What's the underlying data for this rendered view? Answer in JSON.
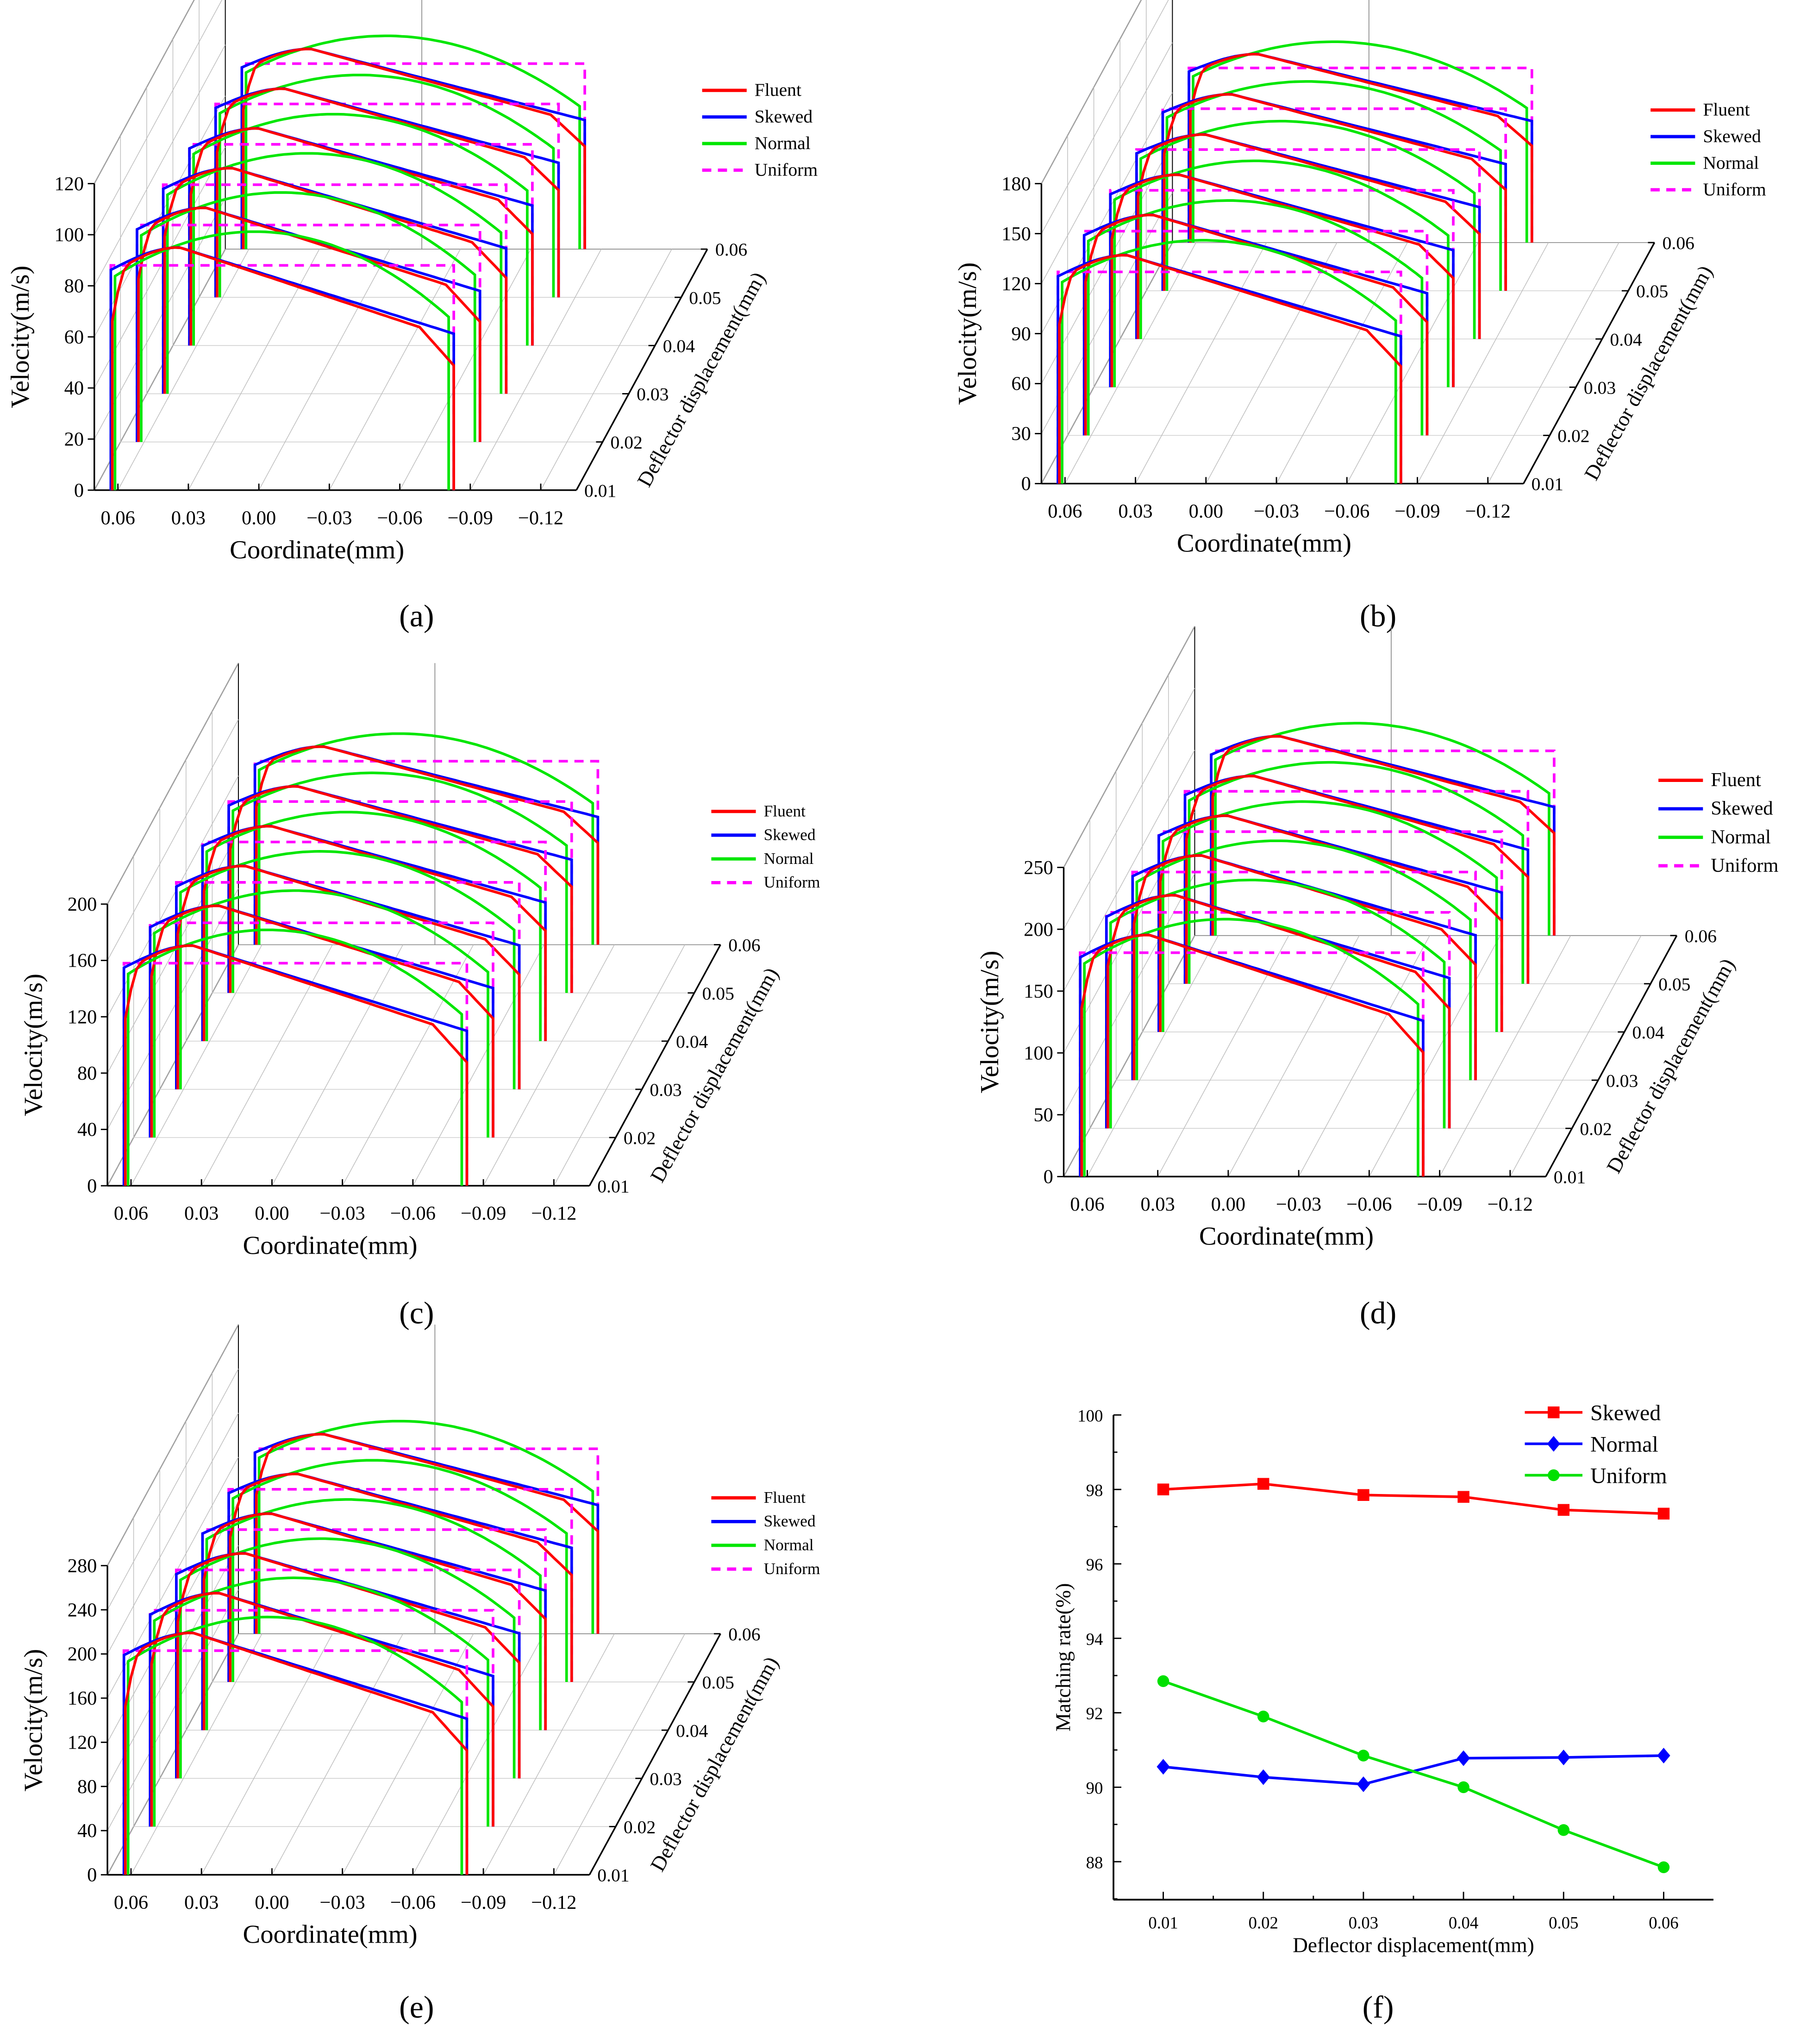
{
  "chart_data": [
    {
      "type": "line3d",
      "panel_label": "(a)",
      "panel_letter": "a",
      "ylabel": "Velocity(m/s)",
      "xlabel": "Coordinate(mm)",
      "zlabel": "Deflector displacement(mm)",
      "ylim": [
        0,
        120
      ],
      "yticks": [
        "0",
        "20",
        "40",
        "60",
        "80",
        "100",
        "120"
      ],
      "xticks": [
        "0.06",
        "0.03",
        "0.00",
        "−0.03",
        "−0.06",
        "−0.09",
        "−0.12"
      ],
      "zticks": [
        "0.01",
        "0.02",
        "0.03",
        "0.04",
        "0.05",
        "0.06"
      ],
      "legend": [
        "Fluent",
        "Skewed",
        "Normal",
        "Uniform"
      ],
      "uniform_velocity": [
        88,
        88,
        88,
        88,
        88,
        88
      ]
    },
    {
      "type": "line3d",
      "panel_label": "(b)",
      "panel_letter": "b",
      "ylabel": "Velocity(m/s)",
      "xlabel": "Coordinate(mm)",
      "zlabel": "Deflector displacement(mm)",
      "ylim": [
        0,
        180
      ],
      "yticks": [
        "0",
        "30",
        "60",
        "90",
        "120",
        "150",
        "180"
      ],
      "xticks": [
        "0.06",
        "0.03",
        "0.00",
        "−0.03",
        "−0.06",
        "−0.09",
        "−0.12"
      ],
      "zticks": [
        "0.01",
        "0.02",
        "0.03",
        "0.04",
        "0.05",
        "0.06"
      ],
      "legend": [
        "Fluent",
        "Skewed",
        "Normal",
        "Uniform"
      ],
      "uniform_velocity": [
        127,
        127,
        127,
        127,
        127,
        127
      ]
    },
    {
      "type": "line3d",
      "panel_label": "(c)",
      "panel_letter": "c",
      "ylabel": "Velocity(m/s)",
      "xlabel": "Coordinate(mm)",
      "zlabel": "Deflector displacement(mm)",
      "ylim": [
        0,
        200
      ],
      "yticks": [
        "0",
        "40",
        "80",
        "120",
        "160",
        "200"
      ],
      "xticks": [
        "0.06",
        "0.03",
        "0.00",
        "−0.03",
        "−0.06",
        "−0.09",
        "−0.12"
      ],
      "zticks": [
        "0.01",
        "0.02",
        "0.03",
        "0.04",
        "0.05",
        "0.06"
      ],
      "legend": [
        "Fluent",
        "Skewed",
        "Normal",
        "Uniform"
      ],
      "uniform_velocity": [
        158,
        158,
        158,
        158,
        158,
        158
      ]
    },
    {
      "type": "line3d",
      "panel_label": "(d)",
      "panel_letter": "d",
      "ylabel": "Velocity(m/s)",
      "xlabel": "Coordinate(mm)",
      "zlabel": "Deflector displacement(mm)",
      "ylim": [
        0,
        250
      ],
      "yticks": [
        "0",
        "50",
        "100",
        "150",
        "200",
        "250"
      ],
      "xticks": [
        "0.06",
        "0.03",
        "0.00",
        "−0.03",
        "−0.06",
        "−0.09",
        "−0.12"
      ],
      "zticks": [
        "0.01",
        "0.02",
        "0.03",
        "0.04",
        "0.05",
        "0.06"
      ],
      "legend": [
        "Fluent",
        "Skewed",
        "Normal",
        "Uniform"
      ],
      "uniform_velocity": [
        181,
        181,
        181,
        181,
        181,
        181
      ]
    },
    {
      "type": "line3d",
      "panel_label": "(e)",
      "panel_letter": "e",
      "ylabel": "Velocity(m/s)",
      "xlabel": "Coordinate(mm)",
      "zlabel": "Deflector displacement(mm)",
      "ylim": [
        0,
        280
      ],
      "yticks": [
        "0",
        "40",
        "80",
        "120",
        "160",
        "200",
        "240",
        "280"
      ],
      "xticks": [
        "0.06",
        "0.03",
        "0.00",
        "−0.03",
        "−0.06",
        "−0.09",
        "−0.12"
      ],
      "zticks": [
        "0.01",
        "0.02",
        "0.03",
        "0.04",
        "0.05",
        "0.06"
      ],
      "legend": [
        "Fluent",
        "Skewed",
        "Normal",
        "Uniform"
      ],
      "uniform_velocity": [
        203,
        203,
        203,
        203,
        203,
        203
      ]
    },
    {
      "type": "line",
      "panel_label": "(f)",
      "panel_letter": "f",
      "xlabel": "Deflector displacement(mm)",
      "ylabel": "Matching rate(%)",
      "x": [
        0.01,
        0.02,
        0.03,
        0.04,
        0.05,
        0.06
      ],
      "xticks": [
        "0.01",
        "0.02",
        "0.03",
        "0.04",
        "0.05",
        "0.06"
      ],
      "ylim": [
        87,
        100
      ],
      "yticks": [
        "88",
        "90",
        "92",
        "94",
        "96",
        "98",
        "100"
      ],
      "legend_position": "top-right",
      "series": [
        {
          "name": "Skewed",
          "color": "#ff0000",
          "marker": "square",
          "values": [
            98.0,
            98.15,
            97.85,
            97.8,
            97.45,
            97.35
          ]
        },
        {
          "name": "Normal",
          "color": "#0000ff",
          "marker": "diamond",
          "values": [
            90.55,
            90.27,
            90.08,
            90.78,
            90.8,
            90.85
          ]
        },
        {
          "name": "Uniform",
          "color": "#00e000",
          "marker": "circle",
          "values": [
            92.85,
            91.9,
            90.85,
            90.0,
            88.85,
            87.85
          ]
        }
      ]
    }
  ],
  "colors": {
    "Fluent": "#ff0000",
    "Skewed": "#0000ff",
    "Normal": "#00e600",
    "Uniform": "#ff00ff"
  }
}
